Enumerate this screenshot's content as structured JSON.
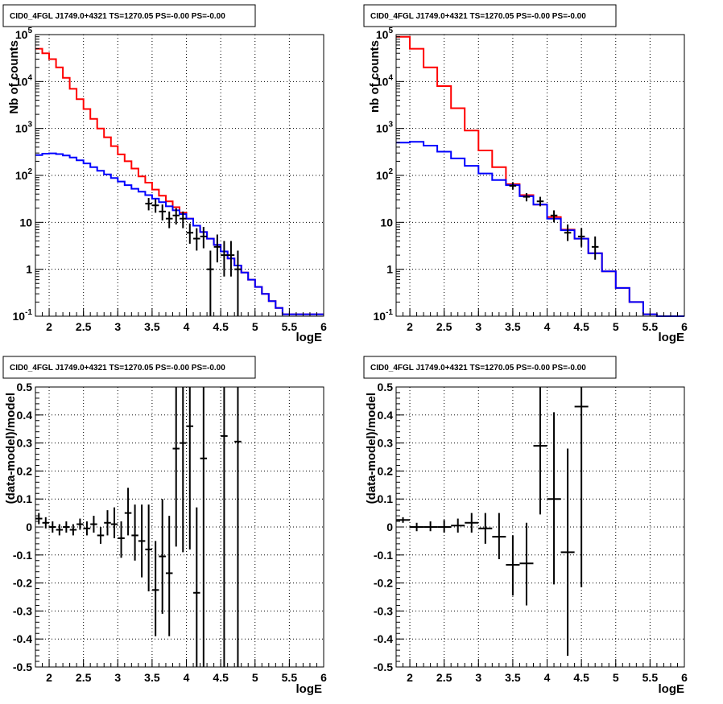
{
  "chart_data": [
    {
      "type": "line",
      "title": "CID0_4FGL J1749.0+4321 TS=1270.05 PS=-0.00 PS=-0.00",
      "xlabel": "logE",
      "ylabel": "Nb of counts",
      "xlim": [
        1.8,
        6.0
      ],
      "ylim": [
        0.1,
        100000
      ],
      "yscale": "log",
      "grid": true,
      "x_ticks": [
        "2",
        "2.5",
        "3",
        "3.5",
        "4",
        "4.5",
        "5",
        "5.5",
        "6"
      ],
      "y_ticks": [
        "10^-1",
        "1",
        "10",
        "10^2",
        "10^3",
        "10^4",
        "10^5"
      ],
      "bin_edges": [
        1.8,
        1.9,
        2.0,
        2.1,
        2.2,
        2.3,
        2.4,
        2.5,
        2.6,
        2.7,
        2.8,
        2.9,
        3.0,
        3.1,
        3.2,
        3.3,
        3.4,
        3.5,
        3.6,
        3.7,
        3.8,
        3.9,
        4.0,
        4.1,
        4.2,
        4.3,
        4.4,
        4.5,
        4.6,
        4.7,
        4.8,
        4.9,
        5.0,
        5.1,
        5.2,
        5.3,
        5.4,
        5.5,
        5.6,
        5.7,
        5.8,
        5.9,
        6.0
      ],
      "series": [
        {
          "color": "#ff0000",
          "style": "step",
          "values": [
            50000,
            40000,
            30000,
            20000,
            12000,
            7000,
            4200,
            2600,
            1600,
            1000,
            650,
            420,
            280,
            200,
            140,
            95,
            70,
            50,
            37,
            28,
            21,
            16,
            12,
            8.5,
            6.2,
            4.5,
            3.3,
            2.4,
            1.7,
            1.2,
            0.85,
            0.6,
            0.42,
            0.3,
            0.21,
            0.15,
            0.11,
            0.11,
            0.11,
            0.11,
            0.11,
            0.11
          ]
        },
        {
          "color": "#0000ff",
          "style": "step",
          "values": [
            270,
            290,
            295,
            285,
            265,
            240,
            210,
            180,
            150,
            125,
            105,
            88,
            74,
            62,
            52,
            45,
            38,
            32,
            27,
            22,
            18,
            15,
            12,
            8.5,
            6.2,
            4.5,
            3.3,
            2.4,
            1.7,
            1.2,
            0.85,
            0.6,
            0.42,
            0.3,
            0.21,
            0.15,
            0.11,
            0.11,
            0.11,
            0.11,
            0.11,
            0.11
          ]
        },
        {
          "color": "#000000",
          "style": "errorbar",
          "points": [
            {
              "x": 3.45,
              "y": 25,
              "ylo": 18,
              "yhi": 33
            },
            {
              "x": 3.55,
              "y": 23,
              "ylo": 16,
              "yhi": 31
            },
            {
              "x": 3.65,
              "y": 17,
              "ylo": 11,
              "yhi": 24
            },
            {
              "x": 3.75,
              "y": 12,
              "ylo": 7.5,
              "yhi": 17
            },
            {
              "x": 3.85,
              "y": 14,
              "ylo": 9,
              "yhi": 20
            },
            {
              "x": 3.95,
              "y": 12,
              "ylo": 7.5,
              "yhi": 17
            },
            {
              "x": 4.05,
              "y": 6,
              "ylo": 3.5,
              "yhi": 9.5
            },
            {
              "x": 4.15,
              "y": 4.5,
              "ylo": 2.5,
              "yhi": 7.5
            },
            {
              "x": 4.25,
              "y": 5,
              "ylo": 2.8,
              "yhi": 8
            },
            {
              "x": 4.35,
              "y": 1,
              "ylo": 0.1,
              "yhi": 2.5
            },
            {
              "x": 4.45,
              "y": 3,
              "ylo": 1.4,
              "yhi": 5.5
            },
            {
              "x": 4.55,
              "y": 2,
              "ylo": 0.7,
              "yhi": 4
            },
            {
              "x": 4.65,
              "y": 2,
              "ylo": 0.7,
              "yhi": 4
            },
            {
              "x": 4.75,
              "y": 1,
              "ylo": 0.1,
              "yhi": 2.5
            }
          ]
        }
      ]
    },
    {
      "type": "line",
      "title": "CID0_4FGL J1749.0+4321 TS=1270.05 PS=-0.00 PS=-0.00",
      "xlabel": "logE",
      "ylabel": "nb of counts",
      "xlim": [
        1.8,
        6.0
      ],
      "ylim": [
        0.1,
        100000
      ],
      "yscale": "log",
      "grid": true,
      "x_ticks": [
        "2",
        "2.5",
        "3",
        "3.5",
        "4",
        "4.5",
        "5",
        "5.5",
        "6"
      ],
      "y_ticks": [
        "10^-1",
        "1",
        "10",
        "10^2",
        "10^3",
        "10^4",
        "10^5"
      ],
      "bin_edges": [
        1.8,
        2.0,
        2.2,
        2.4,
        2.6,
        2.8,
        3.0,
        3.2,
        3.4,
        3.6,
        3.8,
        4.0,
        4.2,
        4.4,
        4.6,
        4.8,
        5.0,
        5.2,
        5.4,
        5.6,
        5.8,
        6.0
      ],
      "series": [
        {
          "color": "#ff0000",
          "style": "step",
          "values": [
            90000,
            50000,
            20000,
            8000,
            2700,
            900,
            340,
            150,
            65,
            38,
            24,
            13,
            7,
            4.5,
            2.2,
            0.9,
            0.4,
            0.2,
            0.11,
            0.1,
            0.1
          ]
        },
        {
          "color": "#0000ff",
          "style": "step",
          "values": [
            500,
            520,
            430,
            320,
            230,
            160,
            110,
            80,
            62,
            36,
            24,
            12,
            6.8,
            4.5,
            2.2,
            0.9,
            0.4,
            0.2,
            0.11,
            0.1,
            0.1
          ]
        },
        {
          "color": "#000000",
          "style": "errorbar",
          "points": [
            {
              "x": 3.5,
              "y": 60,
              "ylo": 50,
              "yhi": 72
            },
            {
              "x": 3.7,
              "y": 35,
              "ylo": 28,
              "yhi": 42
            },
            {
              "x": 3.9,
              "y": 28,
              "ylo": 22,
              "yhi": 35
            },
            {
              "x": 4.1,
              "y": 14,
              "ylo": 10,
              "yhi": 18
            },
            {
              "x": 4.3,
              "y": 6,
              "ylo": 4,
              "yhi": 9
            },
            {
              "x": 4.5,
              "y": 5,
              "ylo": 3,
              "yhi": 7.5
            },
            {
              "x": 4.7,
              "y": 3,
              "ylo": 1.6,
              "yhi": 5
            }
          ]
        }
      ]
    },
    {
      "type": "scatter",
      "title": "CID0_4FGL J1749.0+4321 TS=1270.05 PS=-0.00 PS=-0.00",
      "xlabel": "logE",
      "ylabel": "(data-model)/model",
      "xlim": [
        1.8,
        6.0
      ],
      "ylim": [
        -0.5,
        0.5
      ],
      "grid": true,
      "x_ticks": [
        "2",
        "2.5",
        "3",
        "3.5",
        "4",
        "4.5",
        "5",
        "5.5",
        "6"
      ],
      "y_ticks": [
        "-0.5",
        "-0.4",
        "-0.3",
        "-0.2",
        "-0.1",
        "0",
        "0.1",
        "0.2",
        "0.3",
        "0.4",
        "0.5"
      ],
      "xerr": 0.05,
      "points": [
        {
          "x": 1.85,
          "y": 0.03,
          "ylo": 0.01,
          "yhi": 0.05
        },
        {
          "x": 1.95,
          "y": 0.015,
          "ylo": -0.005,
          "yhi": 0.035
        },
        {
          "x": 2.05,
          "y": 0.0,
          "ylo": -0.02,
          "yhi": 0.02
        },
        {
          "x": 2.15,
          "y": -0.01,
          "ylo": -0.03,
          "yhi": 0.01
        },
        {
          "x": 2.25,
          "y": 0.0,
          "ylo": -0.02,
          "yhi": 0.02
        },
        {
          "x": 2.35,
          "y": -0.01,
          "ylo": -0.03,
          "yhi": 0.01
        },
        {
          "x": 2.45,
          "y": 0.01,
          "ylo": -0.01,
          "yhi": 0.03
        },
        {
          "x": 2.55,
          "y": -0.005,
          "ylo": -0.03,
          "yhi": 0.02
        },
        {
          "x": 2.65,
          "y": 0.01,
          "ylo": -0.02,
          "yhi": 0.04
        },
        {
          "x": 2.75,
          "y": -0.03,
          "ylo": -0.06,
          "yhi": 0.0
        },
        {
          "x": 2.85,
          "y": 0.015,
          "ylo": -0.03,
          "yhi": 0.06
        },
        {
          "x": 2.95,
          "y": 0.01,
          "ylo": -0.04,
          "yhi": 0.07
        },
        {
          "x": 3.05,
          "y": -0.04,
          "ylo": -0.11,
          "yhi": 0.02
        },
        {
          "x": 3.15,
          "y": 0.05,
          "ylo": -0.03,
          "yhi": 0.14
        },
        {
          "x": 3.25,
          "y": -0.03,
          "ylo": -0.12,
          "yhi": 0.08
        },
        {
          "x": 3.35,
          "y": -0.05,
          "ylo": -0.18,
          "yhi": 0.08
        },
        {
          "x": 3.45,
          "y": -0.08,
          "ylo": -0.23,
          "yhi": 0.08
        },
        {
          "x": 3.55,
          "y": -0.225,
          "ylo": -0.39,
          "yhi": -0.05
        },
        {
          "x": 3.65,
          "y": -0.105,
          "ylo": -0.31,
          "yhi": 0.1
        },
        {
          "x": 3.75,
          "y": -0.165,
          "ylo": -0.39,
          "yhi": 0.04
        },
        {
          "x": 3.85,
          "y": 0.28,
          "ylo": -0.07,
          "yhi": 0.5
        },
        {
          "x": 3.95,
          "y": 0.3,
          "ylo": -0.09,
          "yhi": 0.5
        },
        {
          "x": 4.05,
          "y": 0.36,
          "ylo": -0.08,
          "yhi": 0.5
        },
        {
          "x": 4.15,
          "y": -0.235,
          "ylo": -0.5,
          "yhi": 0.07
        },
        {
          "x": 4.25,
          "y": 0.245,
          "ylo": -0.5,
          "yhi": 0.5
        },
        {
          "x": 4.55,
          "y": 0.325,
          "ylo": -0.5,
          "yhi": 0.5
        },
        {
          "x": 4.75,
          "y": 0.305,
          "ylo": -0.5,
          "yhi": 0.5
        }
      ]
    },
    {
      "type": "scatter",
      "title": "CID0_4FGL J1749.0+4321 TS=1270.05 PS=-0.00 PS=-0.00",
      "xlabel": "logE",
      "ylabel": "(data-model)/model",
      "xlim": [
        1.8,
        6.0
      ],
      "ylim": [
        -0.5,
        0.5
      ],
      "grid": true,
      "x_ticks": [
        "2",
        "2.5",
        "3",
        "3.5",
        "4",
        "4.5",
        "5",
        "5.5",
        "6"
      ],
      "y_ticks": [
        "-0.5",
        "-0.4",
        "-0.3",
        "-0.2",
        "-0.1",
        "0",
        "0.1",
        "0.2",
        "0.3",
        "0.4",
        "0.5"
      ],
      "xerr": 0.1,
      "points": [
        {
          "x": 1.9,
          "y": 0.025,
          "ylo": 0.015,
          "yhi": 0.035
        },
        {
          "x": 2.1,
          "y": 0.0,
          "ylo": -0.015,
          "yhi": 0.015
        },
        {
          "x": 2.3,
          "y": 0.0,
          "ylo": -0.015,
          "yhi": 0.02
        },
        {
          "x": 2.5,
          "y": 0.0,
          "ylo": -0.02,
          "yhi": 0.025
        },
        {
          "x": 2.7,
          "y": 0.005,
          "ylo": -0.02,
          "yhi": 0.03
        },
        {
          "x": 2.9,
          "y": 0.015,
          "ylo": -0.02,
          "yhi": 0.05
        },
        {
          "x": 3.1,
          "y": -0.005,
          "ylo": -0.06,
          "yhi": 0.05
        },
        {
          "x": 3.3,
          "y": -0.035,
          "ylo": -0.115,
          "yhi": 0.05
        },
        {
          "x": 3.5,
          "y": -0.135,
          "ylo": -0.245,
          "yhi": -0.03
        },
        {
          "x": 3.7,
          "y": -0.13,
          "ylo": -0.28,
          "yhi": 0.015
        },
        {
          "x": 3.9,
          "y": 0.29,
          "ylo": 0.045,
          "yhi": 0.5
        },
        {
          "x": 4.1,
          "y": 0.1,
          "ylo": -0.205,
          "yhi": 0.41
        },
        {
          "x": 4.3,
          "y": -0.09,
          "ylo": -0.46,
          "yhi": 0.28
        },
        {
          "x": 4.5,
          "y": 0.43,
          "ylo": -0.215,
          "yhi": 0.5
        }
      ]
    }
  ]
}
